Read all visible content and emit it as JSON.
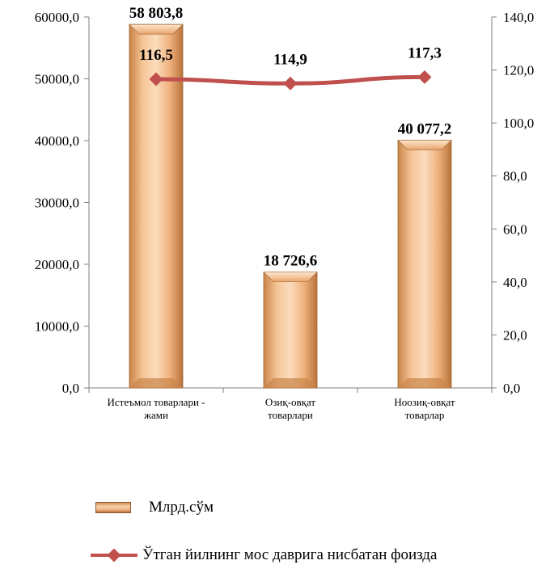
{
  "chart_data": {
    "type": "bar",
    "categories": [
      [
        "Истеъмол товарлари -",
        "жами"
      ],
      [
        "Озиқ-овқат",
        "товарлари"
      ],
      [
        "Ноозиқ-овқат",
        "товарлар"
      ]
    ],
    "series": [
      {
        "name": "Млрд.сўм",
        "type": "bar",
        "axis": "left",
        "values": [
          58803.8,
          18726.6,
          40077.2
        ],
        "labels": [
          "58 803,8",
          "18 726,6",
          "40 077,2"
        ],
        "color": "#f2b987"
      },
      {
        "name": "Ўтган йилнинг мос даврига нисбатан фоизда",
        "type": "line",
        "axis": "right",
        "values": [
          116.5,
          114.9,
          117.3
        ],
        "labels": [
          "116,5",
          "114,9",
          "117,3"
        ],
        "color": "#c0504d"
      }
    ],
    "y_left": {
      "min": 0,
      "max": 60000,
      "ticks": [
        "0,0",
        "10000,0",
        "20000,0",
        "30000,0",
        "40000,0",
        "50000,0",
        "60000,0"
      ]
    },
    "y_right": {
      "min": 0,
      "max": 140,
      "ticks": [
        "0,0",
        "20,0",
        "40,0",
        "60,0",
        "80,0",
        "100,0",
        "120,0",
        "140,0"
      ]
    },
    "grid": false,
    "legend_position": "bottom"
  }
}
